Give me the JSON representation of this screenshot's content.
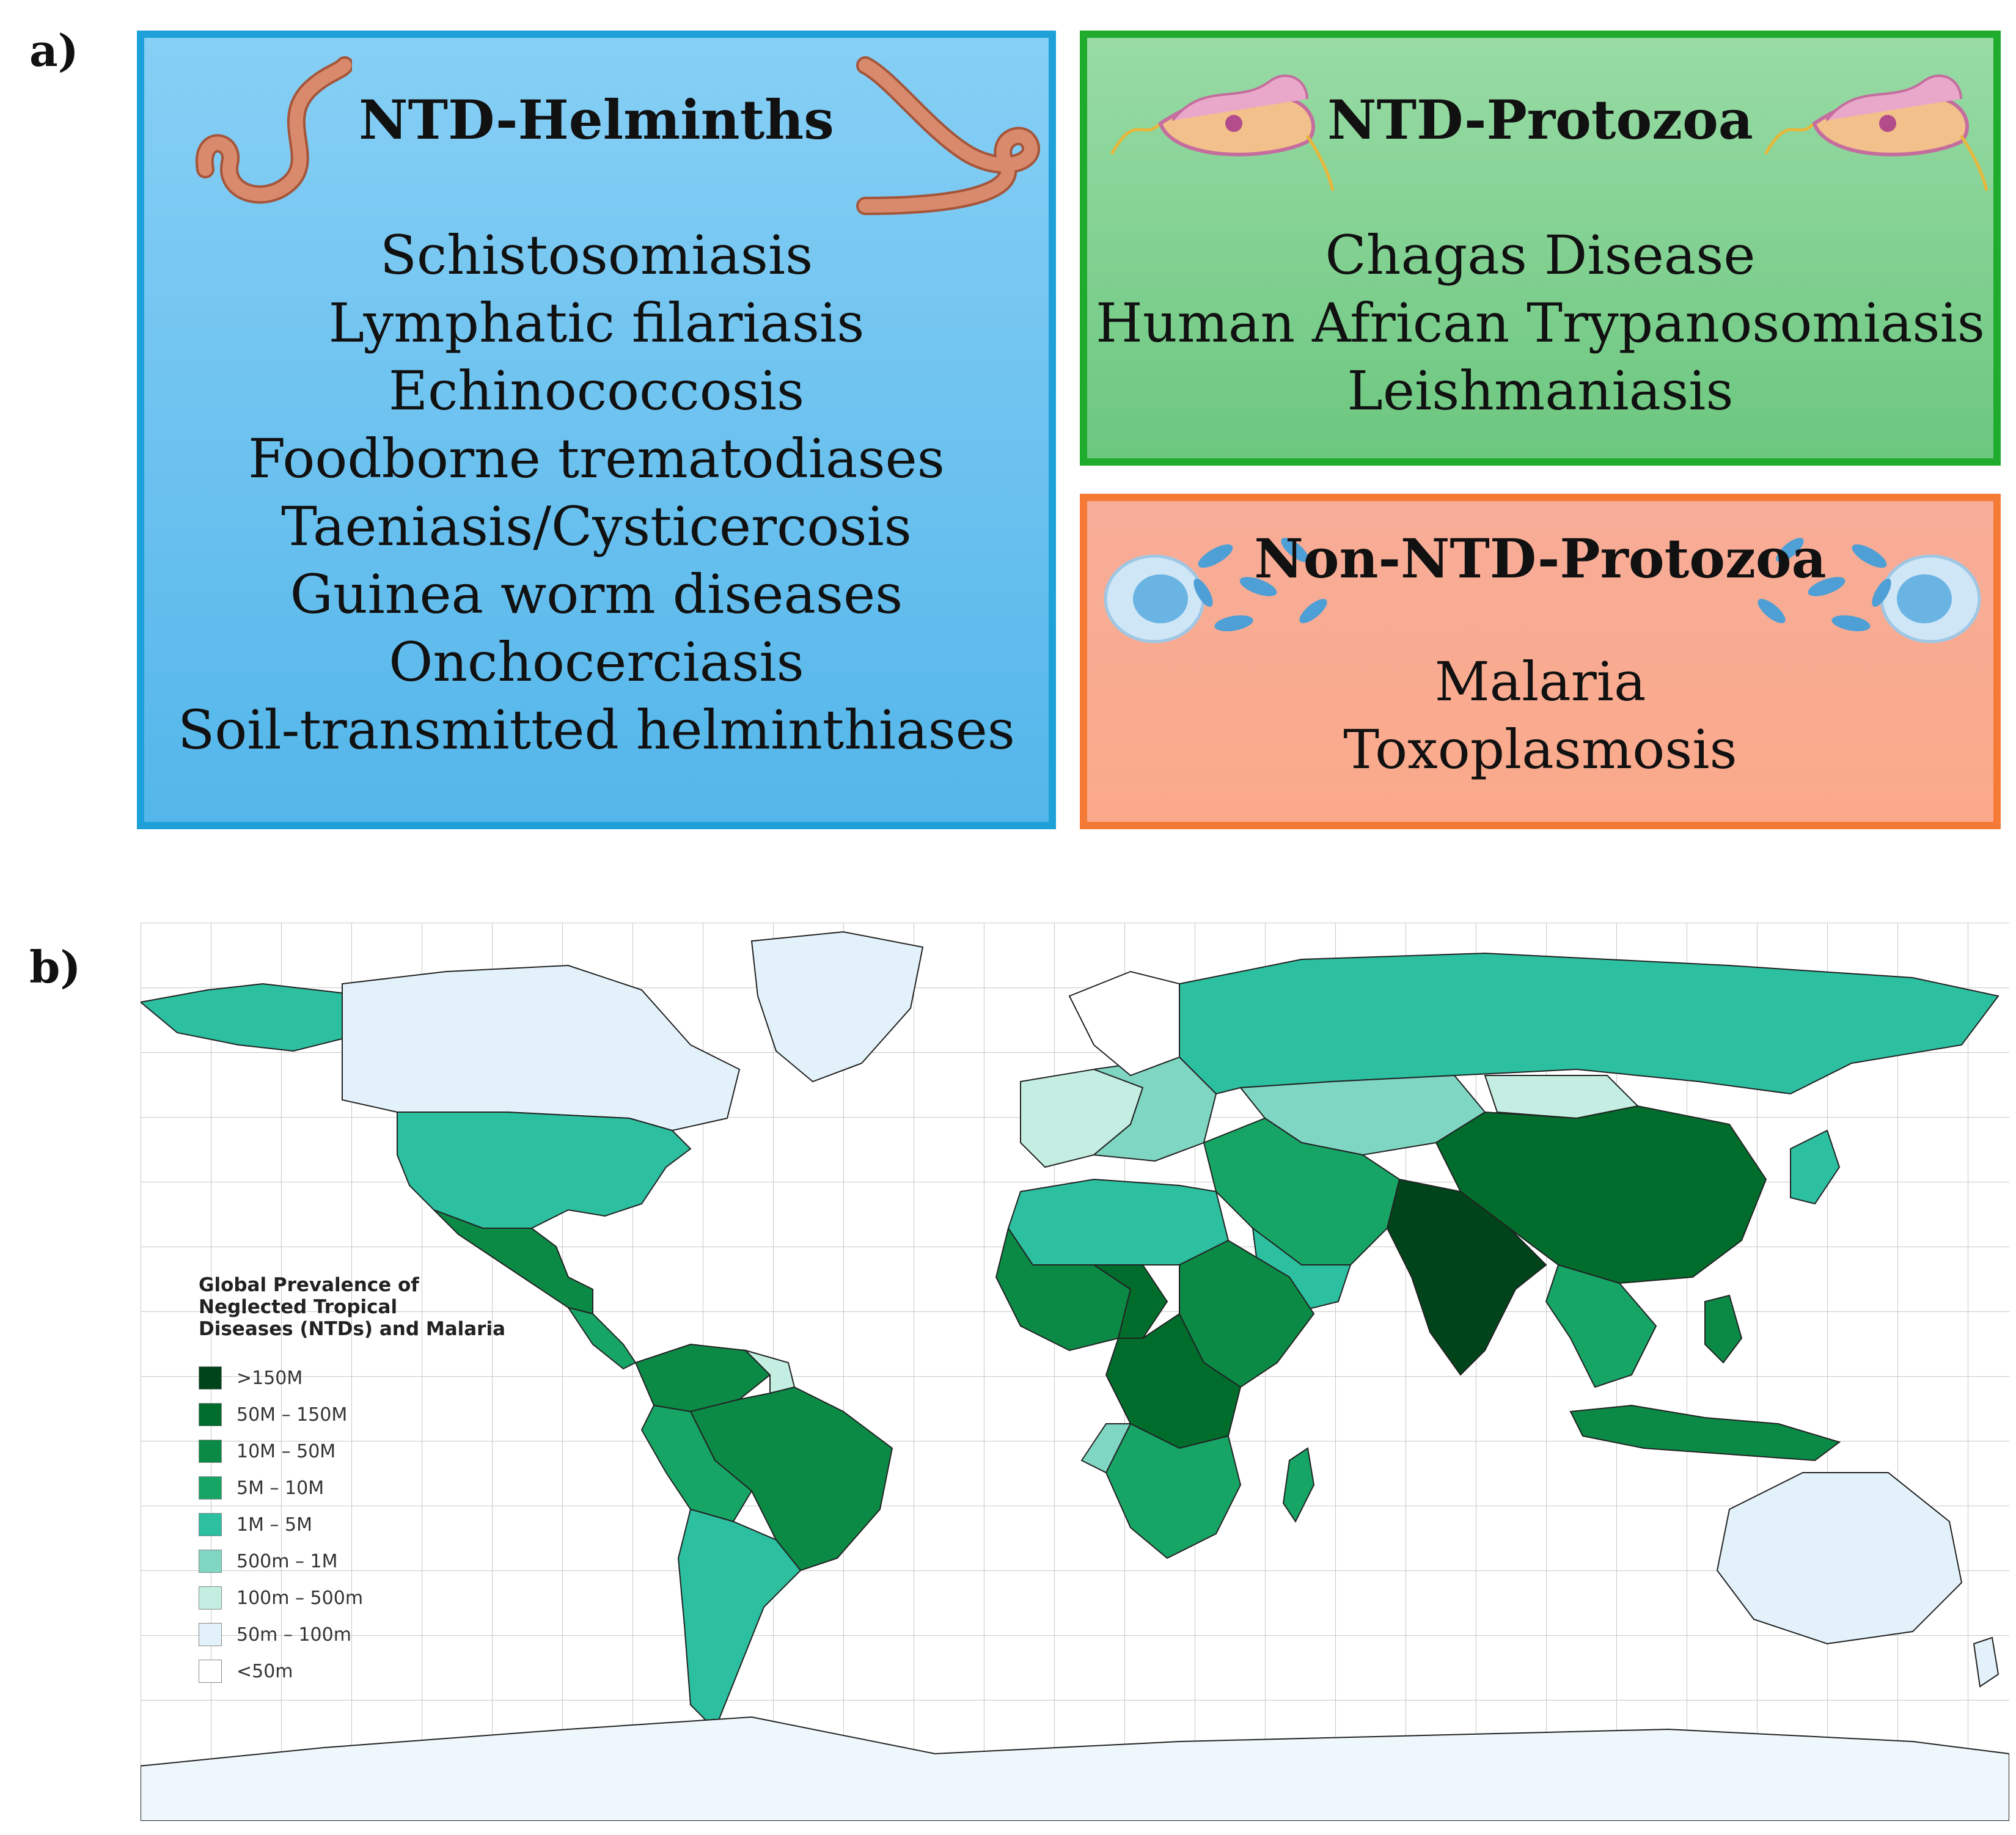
{
  "panel_a": {
    "label": "a)",
    "helminths": {
      "title": "NTD-Helminths",
      "diseases": [
        "Schistosomiasis",
        "Lymphatic filariasis",
        "Echinococcosis",
        "Foodborne trematodiases",
        "Taeniasis/Cysticercosis",
        "Guinea worm diseases",
        "Onchocerciasis",
        "Soil-transmitted helminthiases"
      ],
      "color": "#1ea0d8"
    },
    "ntd_protozoa": {
      "title": "NTD-Protozoa",
      "diseases": [
        "Chagas Disease",
        "Human African Trypanosomiasis",
        "Leishmaniasis"
      ],
      "color": "#1fab2b"
    },
    "non_ntd_protozoa": {
      "title": "Non-NTD-Protozoa",
      "diseases": [
        "Malaria",
        "Toxoplasmosis"
      ],
      "color": "#f47a36"
    }
  },
  "panel_b": {
    "label": "b)",
    "legend": {
      "title_lines": [
        "Global Prevalence of",
        "Neglected Tropical",
        "Diseases (NTDs) and Malaria"
      ],
      "items": [
        {
          "label": ">150M",
          "color": "#00441b"
        },
        {
          "label": "50M – 150M",
          "color": "#006d2c"
        },
        {
          "label": "10M – 50M",
          "color": "#0b8a46"
        },
        {
          "label": "5M – 10M",
          "color": "#17a566"
        },
        {
          "label": "1M – 5M",
          "color": "#2cbfa0"
        },
        {
          "label": "500m – 1M",
          "color": "#7fd6c3"
        },
        {
          "label": "100m – 500m",
          "color": "#c4eee2"
        },
        {
          "label": "50m – 100m",
          "color": "#e3f2fa"
        },
        {
          "label": "<50m",
          "color": "#ffffff"
        }
      ]
    }
  }
}
